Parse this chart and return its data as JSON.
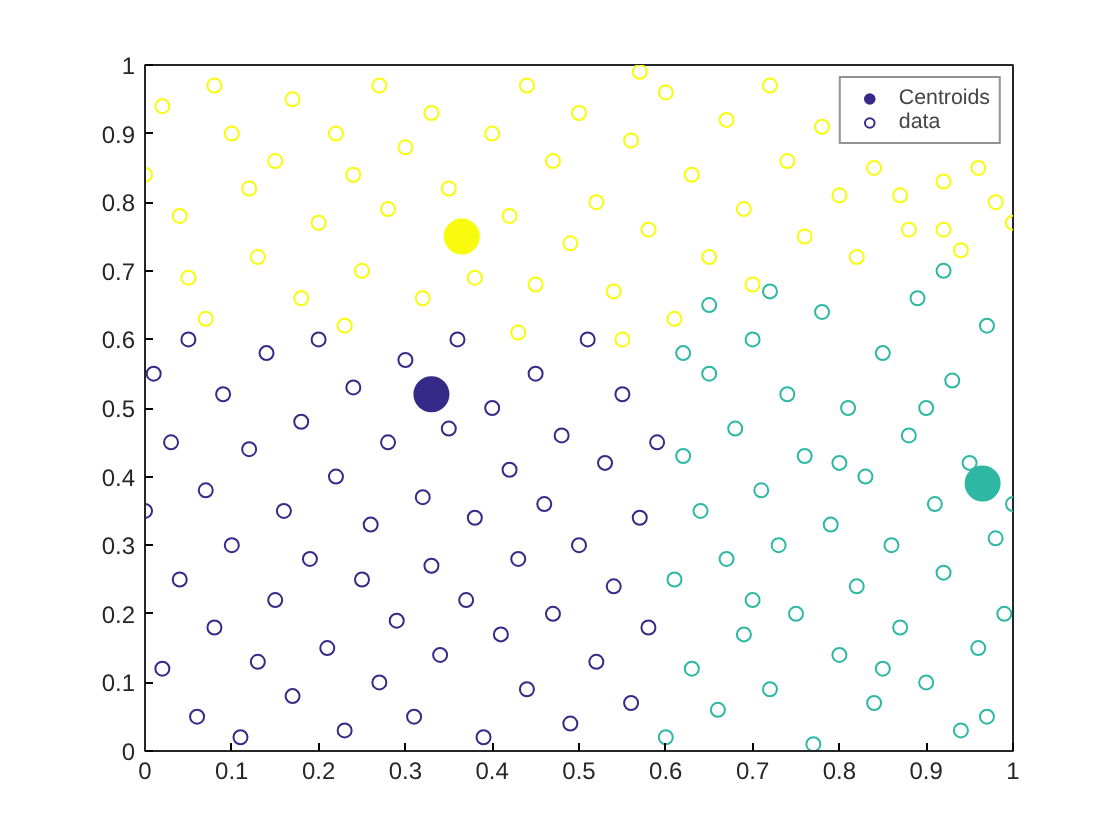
{
  "chart_data": {
    "type": "scatter",
    "xlim": [
      0,
      1
    ],
    "ylim": [
      0,
      1
    ],
    "xticks": [
      0,
      0.1,
      0.2,
      0.3,
      0.4,
      0.5,
      0.6,
      0.7,
      0.8,
      0.9,
      1
    ],
    "yticks": [
      0,
      0.1,
      0.2,
      0.3,
      0.4,
      0.5,
      0.6,
      0.7,
      0.8,
      0.9,
      1
    ],
    "grid": false,
    "legend": "top right",
    "marker": "circle",
    "series": [
      {
        "name": "Centroids",
        "type": "bubble",
        "x": [
          0.33,
          0.365,
          0.965
        ],
        "values": [
          0.52,
          0.75,
          0.39
        ],
        "sizes": [
          1,
          1,
          1
        ],
        "colors": [
          "#352a87",
          "#f9fb0e",
          "#2eb7a3"
        ]
      },
      {
        "name": "data",
        "color": "#352a87",
        "x": [
          0.0,
          0.01,
          0.02,
          0.03,
          0.04,
          0.05,
          0.06,
          0.07,
          0.08,
          0.09,
          0.1,
          0.11,
          0.12,
          0.13,
          0.14,
          0.15,
          0.16,
          0.17,
          0.18,
          0.19,
          0.2,
          0.21,
          0.22,
          0.23,
          0.24,
          0.25,
          0.26,
          0.27,
          0.28,
          0.29,
          0.3,
          0.31,
          0.32,
          0.33,
          0.34,
          0.35,
          0.36,
          0.37,
          0.38,
          0.39,
          0.4,
          0.41,
          0.42,
          0.43,
          0.44,
          0.45,
          0.46,
          0.47,
          0.48,
          0.49,
          0.5,
          0.51,
          0.52,
          0.53,
          0.54,
          0.55,
          0.56,
          0.57,
          0.58,
          0.59
        ],
        "values": [
          0.35,
          0.55,
          0.12,
          0.45,
          0.25,
          0.6,
          0.05,
          0.38,
          0.18,
          0.52,
          0.3,
          0.02,
          0.44,
          0.13,
          0.58,
          0.22,
          0.35,
          0.08,
          0.48,
          0.28,
          0.6,
          0.15,
          0.4,
          0.03,
          0.53,
          0.25,
          0.33,
          0.1,
          0.45,
          0.19,
          0.57,
          0.05,
          0.37,
          0.27,
          0.14,
          0.47,
          0.6,
          0.22,
          0.34,
          0.02,
          0.5,
          0.17,
          0.41,
          0.28,
          0.09,
          0.55,
          0.36,
          0.2,
          0.46,
          0.04,
          0.3,
          0.6,
          0.13,
          0.42,
          0.24,
          0.52,
          0.07,
          0.34,
          0.18,
          0.45
        ]
      },
      {
        "color": "#f9fb0e",
        "x": [
          0.0,
          0.02,
          0.04,
          0.05,
          0.08,
          0.1,
          0.12,
          0.13,
          0.15,
          0.17,
          0.18,
          0.2,
          0.22,
          0.24,
          0.25,
          0.27,
          0.28,
          0.3,
          0.32,
          0.33,
          0.35,
          0.38,
          0.4,
          0.42,
          0.44,
          0.45,
          0.47,
          0.49,
          0.5,
          0.52,
          0.54,
          0.56,
          0.58,
          0.6,
          0.61,
          0.63,
          0.65,
          0.67,
          0.69,
          0.7,
          0.72,
          0.74,
          0.76,
          0.78,
          0.8,
          0.82,
          0.84,
          0.87,
          0.88,
          0.92,
          0.92,
          0.94,
          0.96,
          0.98,
          1.0,
          0.07,
          0.23,
          0.43,
          0.55,
          0.57
        ],
        "values": [
          0.84,
          0.94,
          0.78,
          0.69,
          0.97,
          0.9,
          0.82,
          0.72,
          0.86,
          0.95,
          0.66,
          0.77,
          0.9,
          0.84,
          0.7,
          0.97,
          0.79,
          0.88,
          0.66,
          0.93,
          0.82,
          0.69,
          0.9,
          0.78,
          0.97,
          0.68,
          0.86,
          0.74,
          0.93,
          0.8,
          0.67,
          0.89,
          0.76,
          0.96,
          0.63,
          0.84,
          0.72,
          0.92,
          0.79,
          0.68,
          0.97,
          0.86,
          0.75,
          0.91,
          0.81,
          0.72,
          0.85,
          0.81,
          0.76,
          0.76,
          0.83,
          0.73,
          0.85,
          0.8,
          0.77,
          0.63,
          0.62,
          0.61,
          0.6,
          0.99
        ]
      },
      {
        "color": "#2eb7a3",
        "x": [
          0.6,
          0.61,
          0.62,
          0.63,
          0.64,
          0.65,
          0.66,
          0.67,
          0.68,
          0.69,
          0.7,
          0.71,
          0.72,
          0.73,
          0.74,
          0.75,
          0.76,
          0.77,
          0.78,
          0.79,
          0.8,
          0.81,
          0.82,
          0.83,
          0.84,
          0.85,
          0.86,
          0.87,
          0.88,
          0.89,
          0.9,
          0.91,
          0.92,
          0.93,
          0.94,
          0.95,
          0.96,
          0.97,
          0.98,
          0.99,
          1.0,
          0.65,
          0.72,
          0.92,
          0.97,
          0.62,
          0.7,
          0.85,
          0.8,
          0.9
        ],
        "values": [
          0.02,
          0.25,
          0.43,
          0.12,
          0.35,
          0.55,
          0.06,
          0.28,
          0.47,
          0.17,
          0.6,
          0.38,
          0.09,
          0.3,
          0.52,
          0.2,
          0.43,
          0.01,
          0.64,
          0.33,
          0.14,
          0.5,
          0.24,
          0.4,
          0.07,
          0.58,
          0.3,
          0.18,
          0.46,
          0.66,
          0.1,
          0.36,
          0.26,
          0.54,
          0.03,
          0.42,
          0.15,
          0.62,
          0.31,
          0.2,
          0.36,
          0.65,
          0.67,
          0.7,
          0.05,
          0.58,
          0.22,
          0.12,
          0.42,
          0.5
        ]
      }
    ]
  }
}
